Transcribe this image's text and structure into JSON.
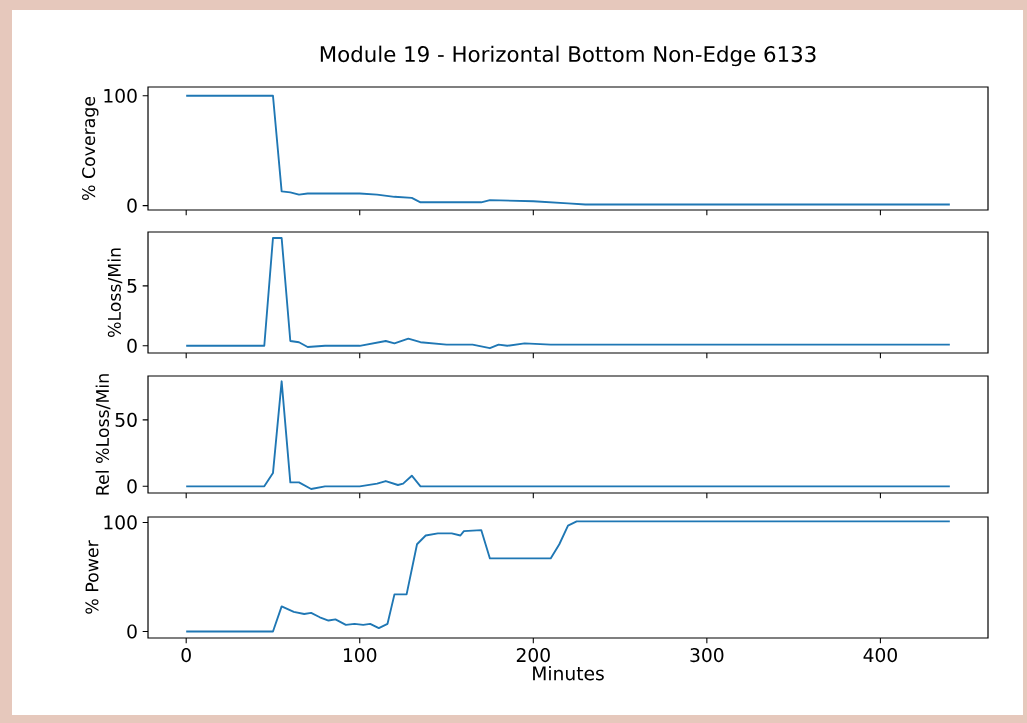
{
  "chart_data": [
    {
      "type": "line",
      "title": "Module 19 - Horizontal Bottom Non-Edge 6133",
      "ylabel": "% Coverage",
      "color": "#1f77b4",
      "x": [
        0,
        50,
        55,
        60,
        65,
        70,
        80,
        90,
        100,
        110,
        120,
        130,
        135,
        150,
        170,
        175,
        200,
        220,
        230,
        440
      ],
      "values": [
        100,
        100,
        13,
        12,
        10,
        11,
        11,
        11,
        11,
        10,
        8,
        7,
        3,
        3,
        3,
        5,
        4,
        2,
        1,
        1
      ],
      "xlim": [
        -22,
        462
      ],
      "xticks": [
        0,
        100,
        200,
        300,
        400
      ],
      "ylim": [
        -4,
        108
      ],
      "yticks": [
        0,
        100
      ],
      "tick_labels": "y"
    },
    {
      "type": "line",
      "ylabel": "%Loss/Min",
      "color": "#1f77b4",
      "x": [
        0,
        45,
        50,
        55,
        60,
        65,
        70,
        80,
        100,
        115,
        120,
        128,
        135,
        150,
        165,
        175,
        180,
        185,
        195,
        210,
        440
      ],
      "values": [
        0,
        0,
        9,
        9,
        0.4,
        0.3,
        -0.1,
        0,
        0,
        0.4,
        0.2,
        0.6,
        0.3,
        0.1,
        0.1,
        -0.2,
        0.1,
        0,
        0.2,
        0.1,
        0.1
      ],
      "xlim": [
        -22,
        462
      ],
      "xticks": [
        0,
        100,
        200,
        300,
        400
      ],
      "ylim": [
        -0.6,
        9.5
      ],
      "yticks": [
        0,
        5
      ],
      "tick_labels": "y"
    },
    {
      "type": "line",
      "ylabel": "Rel %Loss/Min",
      "color": "#1f77b4",
      "x": [
        0,
        45,
        50,
        55,
        60,
        65,
        72,
        80,
        100,
        110,
        115,
        122,
        125,
        130,
        135,
        440
      ],
      "values": [
        0,
        0,
        10,
        79,
        3,
        3,
        -2,
        0,
        0,
        2,
        4,
        1,
        2,
        8,
        0,
        0
      ],
      "xlim": [
        -22,
        462
      ],
      "xticks": [
        0,
        100,
        200,
        300,
        400
      ],
      "ylim": [
        -5,
        83
      ],
      "yticks": [
        0,
        50
      ],
      "tick_labels": "y"
    },
    {
      "type": "line",
      "ylabel": "% Power",
      "xlabel": "Minutes",
      "color": "#1f77b4",
      "x": [
        0,
        50,
        55,
        62,
        68,
        72,
        77,
        82,
        86,
        92,
        97,
        102,
        106,
        111,
        116,
        120,
        127,
        133,
        138,
        145,
        153,
        158,
        160,
        170,
        175,
        210,
        215,
        220,
        225,
        440
      ],
      "values": [
        0,
        0,
        23,
        18,
        16,
        17,
        13,
        10,
        11,
        6,
        7,
        6,
        7,
        3,
        7,
        34,
        34,
        80,
        88,
        90,
        90,
        88,
        92,
        93,
        67,
        67,
        80,
        97,
        101,
        101
      ],
      "xlim": [
        -22,
        462
      ],
      "xticks": [
        0,
        100,
        200,
        300,
        400
      ],
      "ylim": [
        -6,
        105
      ],
      "yticks": [
        0,
        100
      ]
    }
  ]
}
